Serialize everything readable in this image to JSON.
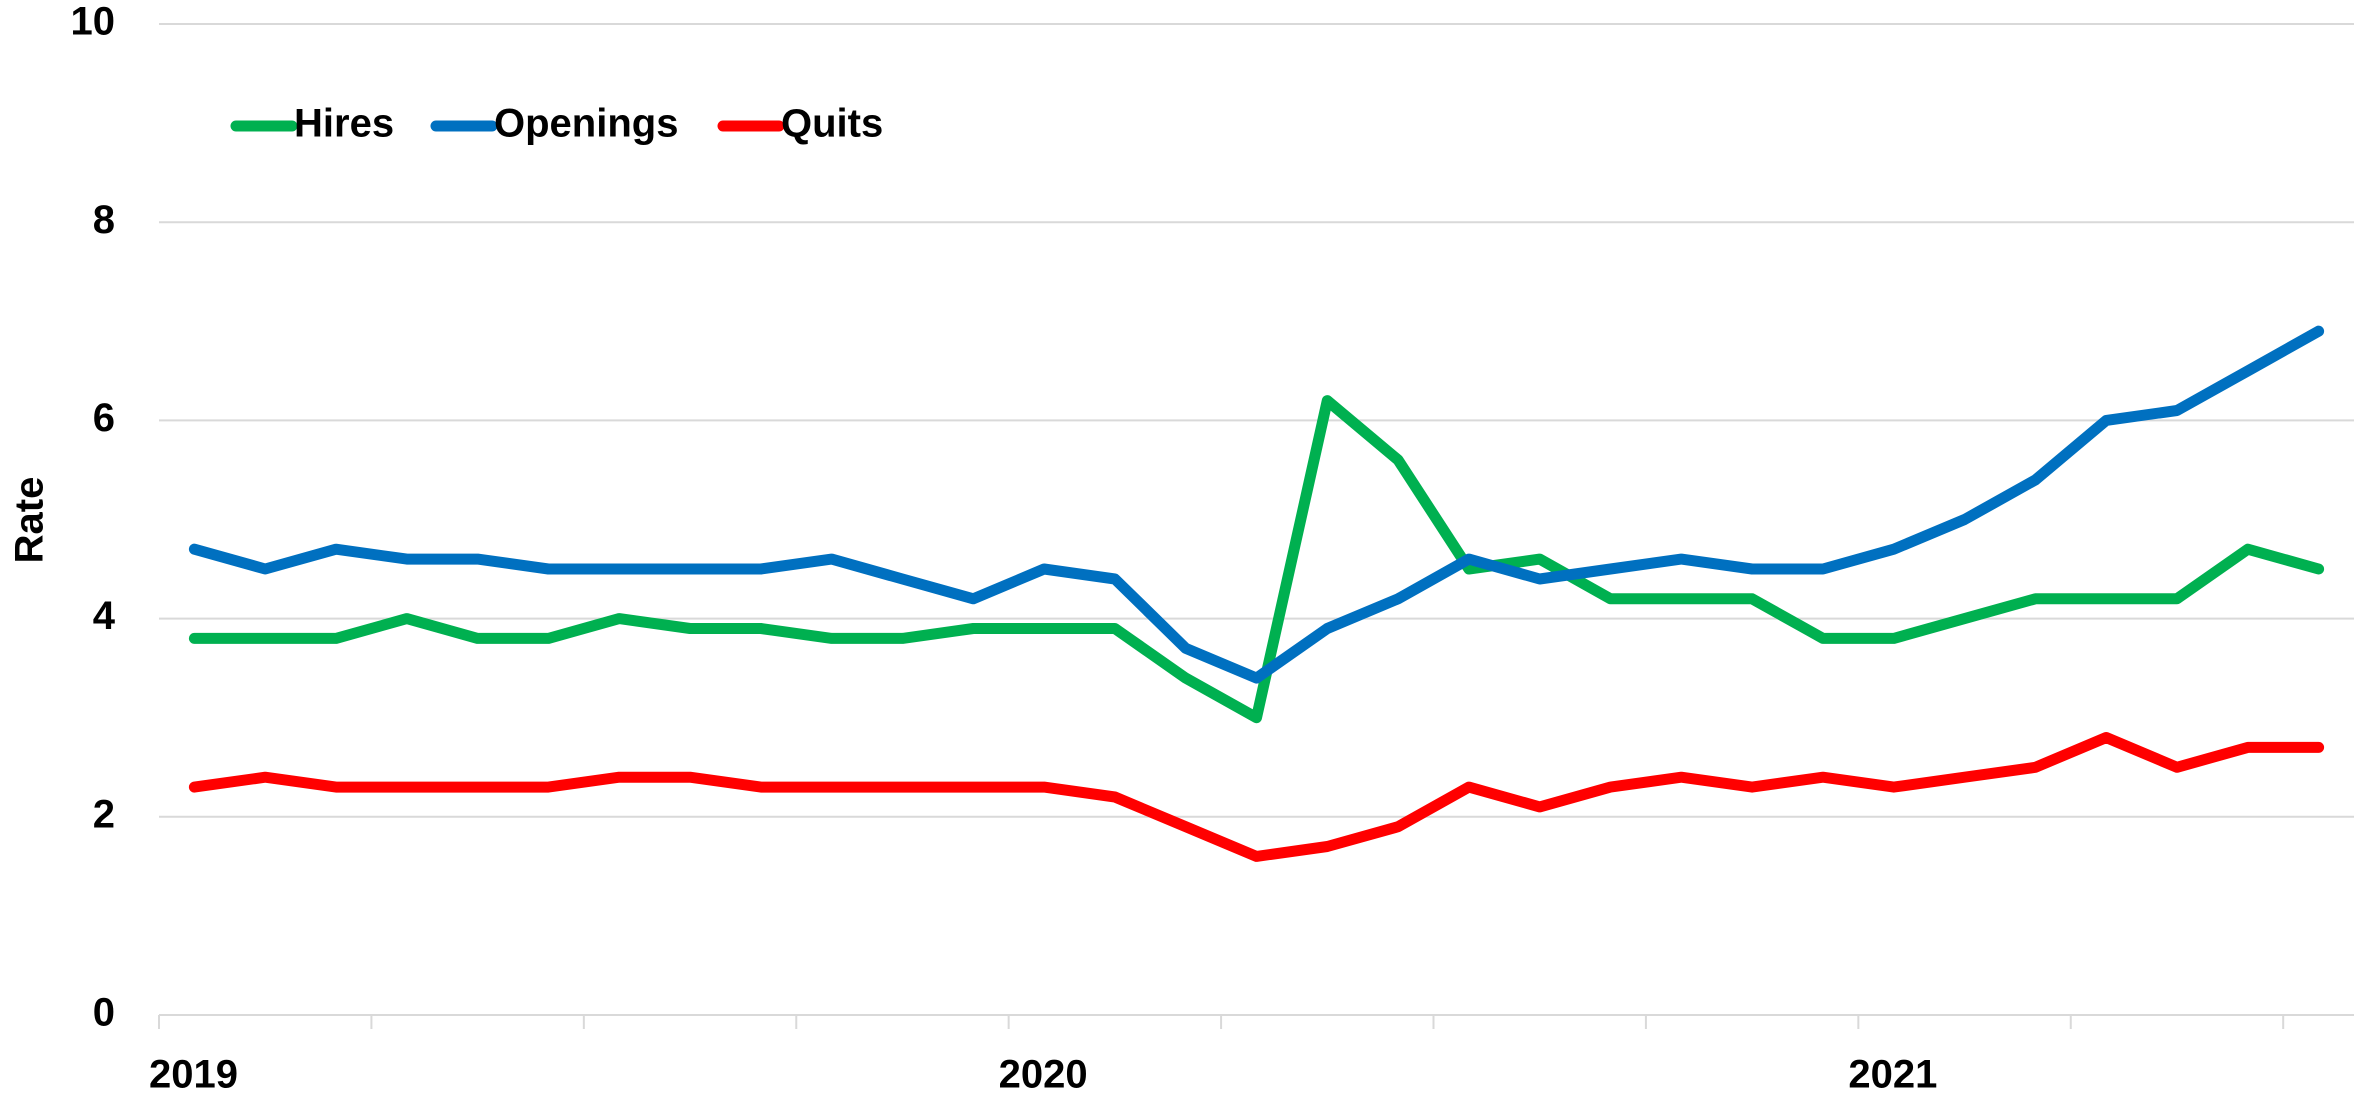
{
  "chart_data": {
    "type": "line",
    "ylabel": "Rate",
    "categories": [
      "2019",
      null,
      null,
      null,
      null,
      null,
      null,
      null,
      null,
      null,
      null,
      null,
      "2020",
      null,
      null,
      null,
      null,
      null,
      null,
      null,
      null,
      null,
      null,
      null,
      "2021",
      null,
      null,
      null,
      null,
      null,
      null
    ],
    "series": [
      {
        "name": "Hires",
        "color": "#00b050",
        "values": [
          3.8,
          3.8,
          3.8,
          4.0,
          3.8,
          3.8,
          4.0,
          3.9,
          3.9,
          3.8,
          3.8,
          3.9,
          3.9,
          3.9,
          3.4,
          3.0,
          6.2,
          5.6,
          4.5,
          4.6,
          4.2,
          4.2,
          4.2,
          3.8,
          3.8,
          4.0,
          4.2,
          4.2,
          4.2,
          4.7,
          4.5
        ]
      },
      {
        "name": "Openings",
        "color": "#0070c0",
        "values": [
          4.7,
          4.5,
          4.7,
          4.6,
          4.6,
          4.5,
          4.5,
          4.5,
          4.5,
          4.6,
          4.4,
          4.2,
          4.5,
          4.4,
          3.7,
          3.4,
          3.9,
          4.2,
          4.6,
          4.4,
          4.5,
          4.6,
          4.5,
          4.5,
          4.7,
          5.0,
          5.4,
          6.0,
          6.1,
          6.5,
          6.9
        ]
      },
      {
        "name": "Quits",
        "color": "#ff0000",
        "values": [
          2.3,
          2.4,
          2.3,
          2.3,
          2.3,
          2.3,
          2.4,
          2.4,
          2.3,
          2.3,
          2.3,
          2.3,
          2.3,
          2.2,
          1.9,
          1.6,
          1.7,
          1.9,
          2.3,
          2.1,
          2.3,
          2.4,
          2.3,
          2.4,
          2.3,
          2.4,
          2.5,
          2.8,
          2.5,
          2.7,
          2.7
        ]
      }
    ],
    "ylim": [
      0,
      10
    ],
    "yticks": [
      0,
      2,
      4,
      6,
      8,
      10
    ],
    "grid": true,
    "legend": "upper left"
  }
}
